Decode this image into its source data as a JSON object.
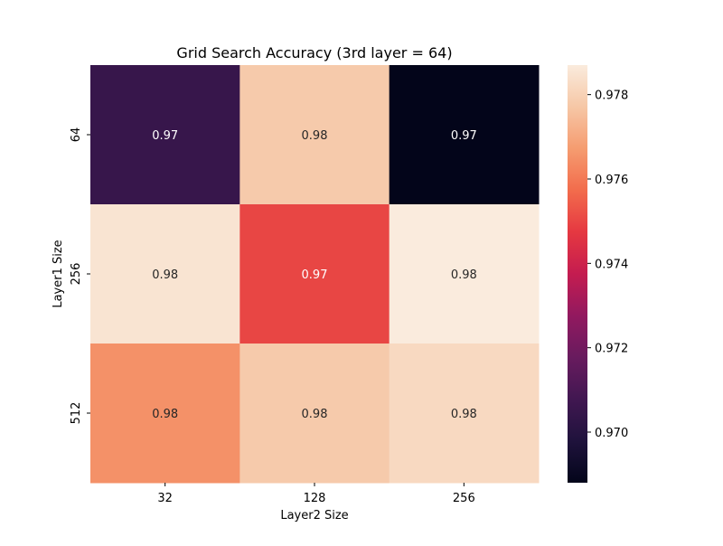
{
  "chart_data": {
    "type": "heatmap",
    "title": "Grid Search Accuracy (3rd layer = 64)",
    "xlabel": "Layer2 Size",
    "ylabel": "Layer1 Size",
    "x_categories": [
      "32",
      "128",
      "256"
    ],
    "y_categories": [
      "64",
      "256",
      "512"
    ],
    "values": [
      [
        0.9705,
        0.9778,
        0.9688
      ],
      [
        0.9785,
        0.975,
        0.9787
      ],
      [
        0.9765,
        0.9778,
        0.9782
      ]
    ],
    "annotations": [
      [
        "0.97",
        "0.98",
        "0.97"
      ],
      [
        "0.98",
        "0.97",
        "0.98"
      ],
      [
        "0.98",
        "0.98",
        "0.98"
      ]
    ],
    "colorbar": {
      "range": [
        0.9688,
        0.9787
      ],
      "ticks": [
        0.97,
        0.972,
        0.974,
        0.976,
        0.978
      ],
      "tick_labels": [
        "0.970",
        "0.972",
        "0.974",
        "0.976",
        "0.978"
      ],
      "colormap": "rocket"
    },
    "grid": false,
    "legend": "colorbar-right"
  }
}
